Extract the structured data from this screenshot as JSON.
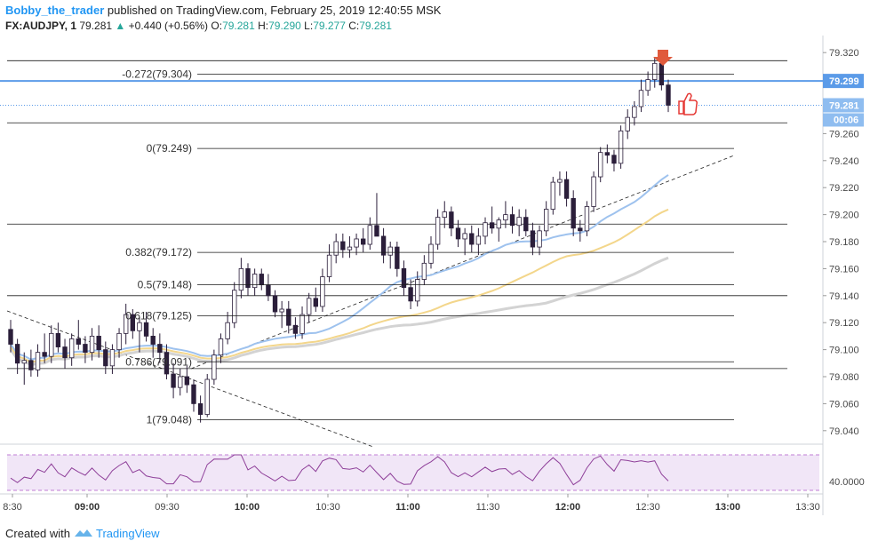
{
  "header": {
    "author": "Bobby_the_trader",
    "published": "published on TradingView.com, February 25, 2019 12:40:55 MSK",
    "symbol": "FX:AUDJPY, 1",
    "last": "79.281",
    "change": "+0.440 (+0.56%)",
    "o_label": "O:",
    "o_value": "79.281",
    "h_label": "H:",
    "h_value": "79.290",
    "l_label": "L:",
    "l_value": "79.277",
    "c_label": "C:",
    "c_value": "79.281"
  },
  "footer": {
    "created_with": "Created with",
    "brand": "TradingView"
  },
  "colors": {
    "candle_up": "#ffffff",
    "candle_down": "#2b1e3a",
    "wick": "#2b1e3a",
    "ma_fast": "#9ec2ee",
    "ma_mid": "#f3d68b",
    "ma_slow": "#d3d3d3",
    "horizontal_blue": "#5b9be8",
    "rsi_line": "#8e3f99",
    "rsi_band": "#f1e6f7",
    "arrow": "#e05a3c",
    "thumb": "#e53935"
  },
  "chart_data": {
    "type": "candlestick",
    "symbol": "FX:AUDJPY",
    "interval": "1",
    "price_axis": {
      "range": [
        79.03,
        79.33
      ],
      "ticks": [
        "79.320",
        "79.300",
        "79.280",
        "79.260",
        "79.240",
        "79.220",
        "79.200",
        "79.180",
        "79.160",
        "79.140",
        "79.120",
        "79.100",
        "79.080",
        "79.060",
        "79.040"
      ]
    },
    "time_axis": {
      "ticks": [
        "8:30",
        "09:00",
        "09:30",
        "10:00",
        "10:30",
        "11:00",
        "11:30",
        "12:00",
        "12:30",
        "13:00",
        "13:30"
      ],
      "bold": [
        "09:00",
        "10:00",
        "11:00",
        "12:00",
        "13:00"
      ]
    },
    "price_tags": [
      {
        "label": "79.299",
        "value": 79.299
      },
      {
        "label": "79.281",
        "value": 79.281
      },
      {
        "label": "00:06"
      }
    ],
    "fib_levels": [
      {
        "label": "-0.272(79.304)",
        "value": 79.304
      },
      {
        "label": "0(79.249)",
        "value": 79.249
      },
      {
        "label": "0.382(79.172)",
        "value": 79.172
      },
      {
        "label": "0.5(79.148)",
        "value": 79.148
      },
      {
        "label": "0.618(79.125)",
        "value": 79.125
      },
      {
        "label": "0.786(79.091)",
        "value": 79.091
      },
      {
        "label": "1(79.048)",
        "value": 79.048
      }
    ],
    "horizontal_lines": [
      79.314,
      79.299,
      79.268,
      79.193,
      79.14,
      79.086
    ],
    "rsi": {
      "label": "40.0000",
      "value": 40.0
    },
    "ohlc": [
      [
        79.115,
        79.122,
        79.098,
        79.104
      ],
      [
        79.104,
        79.108,
        79.082,
        79.09
      ],
      [
        79.09,
        79.098,
        79.074,
        79.092
      ],
      [
        79.092,
        79.1,
        79.08,
        79.085
      ],
      [
        79.085,
        79.104,
        79.08,
        79.098
      ],
      [
        79.098,
        79.112,
        79.09,
        79.095
      ],
      [
        79.095,
        79.118,
        79.09,
        79.112
      ],
      [
        79.112,
        79.12,
        79.098,
        79.102
      ],
      [
        79.102,
        79.108,
        79.086,
        79.094
      ],
      [
        79.094,
        79.112,
        79.088,
        79.108
      ],
      [
        79.108,
        79.122,
        79.1,
        79.104
      ],
      [
        79.104,
        79.11,
        79.09,
        79.098
      ],
      [
        79.098,
        79.116,
        79.092,
        79.11
      ],
      [
        79.11,
        79.118,
        79.094,
        79.1
      ],
      [
        79.1,
        79.106,
        79.082,
        79.088
      ],
      [
        79.088,
        79.104,
        79.082,
        79.1
      ],
      [
        79.1,
        79.116,
        79.094,
        79.112
      ],
      [
        79.112,
        79.134,
        79.104,
        79.126
      ],
      [
        79.126,
        79.13,
        79.108,
        79.114
      ],
      [
        79.114,
        79.124,
        79.098,
        79.12
      ],
      [
        79.12,
        79.128,
        79.106,
        79.11
      ],
      [
        79.11,
        79.116,
        79.094,
        79.104
      ],
      [
        79.104,
        79.112,
        79.09,
        79.098
      ],
      [
        79.098,
        79.104,
        79.078,
        79.082
      ],
      [
        79.082,
        79.09,
        79.064,
        79.072
      ],
      [
        79.072,
        79.086,
        79.066,
        79.08
      ],
      [
        79.08,
        79.088,
        79.068,
        79.074
      ],
      [
        79.074,
        79.078,
        79.054,
        79.06
      ],
      [
        79.06,
        79.066,
        79.046,
        79.052
      ],
      [
        79.052,
        79.082,
        79.05,
        79.078
      ],
      [
        79.078,
        79.1,
        79.074,
        79.096
      ],
      [
        79.096,
        79.112,
        79.09,
        79.108
      ],
      [
        79.108,
        79.128,
        79.104,
        79.12
      ],
      [
        79.12,
        79.15,
        79.116,
        79.144
      ],
      [
        79.144,
        79.168,
        79.138,
        79.16
      ],
      [
        79.16,
        79.164,
        79.14,
        79.146
      ],
      [
        79.146,
        79.16,
        79.14,
        79.156
      ],
      [
        79.156,
        79.16,
        79.144,
        79.148
      ],
      [
        79.148,
        79.156,
        79.136,
        79.14
      ],
      [
        79.14,
        79.144,
        79.124,
        79.128
      ],
      [
        79.128,
        79.136,
        79.116,
        79.13
      ],
      [
        79.13,
        79.136,
        79.112,
        79.118
      ],
      [
        79.118,
        79.124,
        79.108,
        79.112
      ],
      [
        79.112,
        79.132,
        79.108,
        79.126
      ],
      [
        79.126,
        79.142,
        79.12,
        79.138
      ],
      [
        79.138,
        79.146,
        79.128,
        79.132
      ],
      [
        79.132,
        79.16,
        79.128,
        79.154
      ],
      [
        79.154,
        79.178,
        79.15,
        79.17
      ],
      [
        79.17,
        79.186,
        79.164,
        79.18
      ],
      [
        79.18,
        79.186,
        79.168,
        79.174
      ],
      [
        79.174,
        79.184,
        79.168,
        79.176
      ],
      [
        79.176,
        79.186,
        79.17,
        79.182
      ],
      [
        79.182,
        79.19,
        79.172,
        79.178
      ],
      [
        79.178,
        79.198,
        79.174,
        79.192
      ],
      [
        79.192,
        79.216,
        79.186,
        79.184
      ],
      [
        79.184,
        79.19,
        79.164,
        79.17
      ],
      [
        79.17,
        79.18,
        79.16,
        79.176
      ],
      [
        79.176,
        79.18,
        79.154,
        79.16
      ],
      [
        79.16,
        79.166,
        79.14,
        79.146
      ],
      [
        79.146,
        79.152,
        79.13,
        79.136
      ],
      [
        79.136,
        79.158,
        79.132,
        79.152
      ],
      [
        79.152,
        79.17,
        79.148,
        79.164
      ],
      [
        79.164,
        79.184,
        79.16,
        79.178
      ],
      [
        79.178,
        79.204,
        79.174,
        79.198
      ],
      [
        79.198,
        79.21,
        79.19,
        79.202
      ],
      [
        79.202,
        79.206,
        79.184,
        79.19
      ],
      [
        79.19,
        79.196,
        79.176,
        79.182
      ],
      [
        79.182,
        79.19,
        79.17,
        79.186
      ],
      [
        79.186,
        79.192,
        79.172,
        79.178
      ],
      [
        79.178,
        79.19,
        79.17,
        79.184
      ],
      [
        79.184,
        79.198,
        79.178,
        79.194
      ],
      [
        79.194,
        79.206,
        79.186,
        79.19
      ],
      [
        79.19,
        79.198,
        79.18,
        79.196
      ],
      [
        79.196,
        79.21,
        79.19,
        79.2
      ],
      [
        79.2,
        79.206,
        79.186,
        79.192
      ],
      [
        79.192,
        79.204,
        79.184,
        79.198
      ],
      [
        79.198,
        79.204,
        79.184,
        79.188
      ],
      [
        79.188,
        79.194,
        79.17,
        79.176
      ],
      [
        79.176,
        79.192,
        79.17,
        79.188
      ],
      [
        79.188,
        79.21,
        79.184,
        79.204
      ],
      [
        79.204,
        79.228,
        79.2,
        79.224
      ],
      [
        79.224,
        79.232,
        79.214,
        79.226
      ],
      [
        79.226,
        79.232,
        79.206,
        79.212
      ],
      [
        79.212,
        79.218,
        79.184,
        79.19
      ],
      [
        79.19,
        79.196,
        79.18,
        79.188
      ],
      [
        79.188,
        79.21,
        79.184,
        79.206
      ],
      [
        79.206,
        79.232,
        79.202,
        79.228
      ],
      [
        79.228,
        79.25,
        79.224,
        79.246
      ],
      [
        79.246,
        79.252,
        79.238,
        79.244
      ],
      [
        79.244,
        79.248,
        79.232,
        79.238
      ],
      [
        79.238,
        79.266,
        79.234,
        79.262
      ],
      [
        79.262,
        79.278,
        79.256,
        79.272
      ],
      [
        79.272,
        79.284,
        79.266,
        79.28
      ],
      [
        79.28,
        79.3,
        79.276,
        79.292
      ],
      [
        79.292,
        79.306,
        79.288,
        79.3
      ],
      [
        79.3,
        79.316,
        79.294,
        79.312
      ],
      [
        79.312,
        79.318,
        79.292,
        79.296
      ],
      [
        79.296,
        79.3,
        79.276,
        79.281
      ]
    ]
  }
}
